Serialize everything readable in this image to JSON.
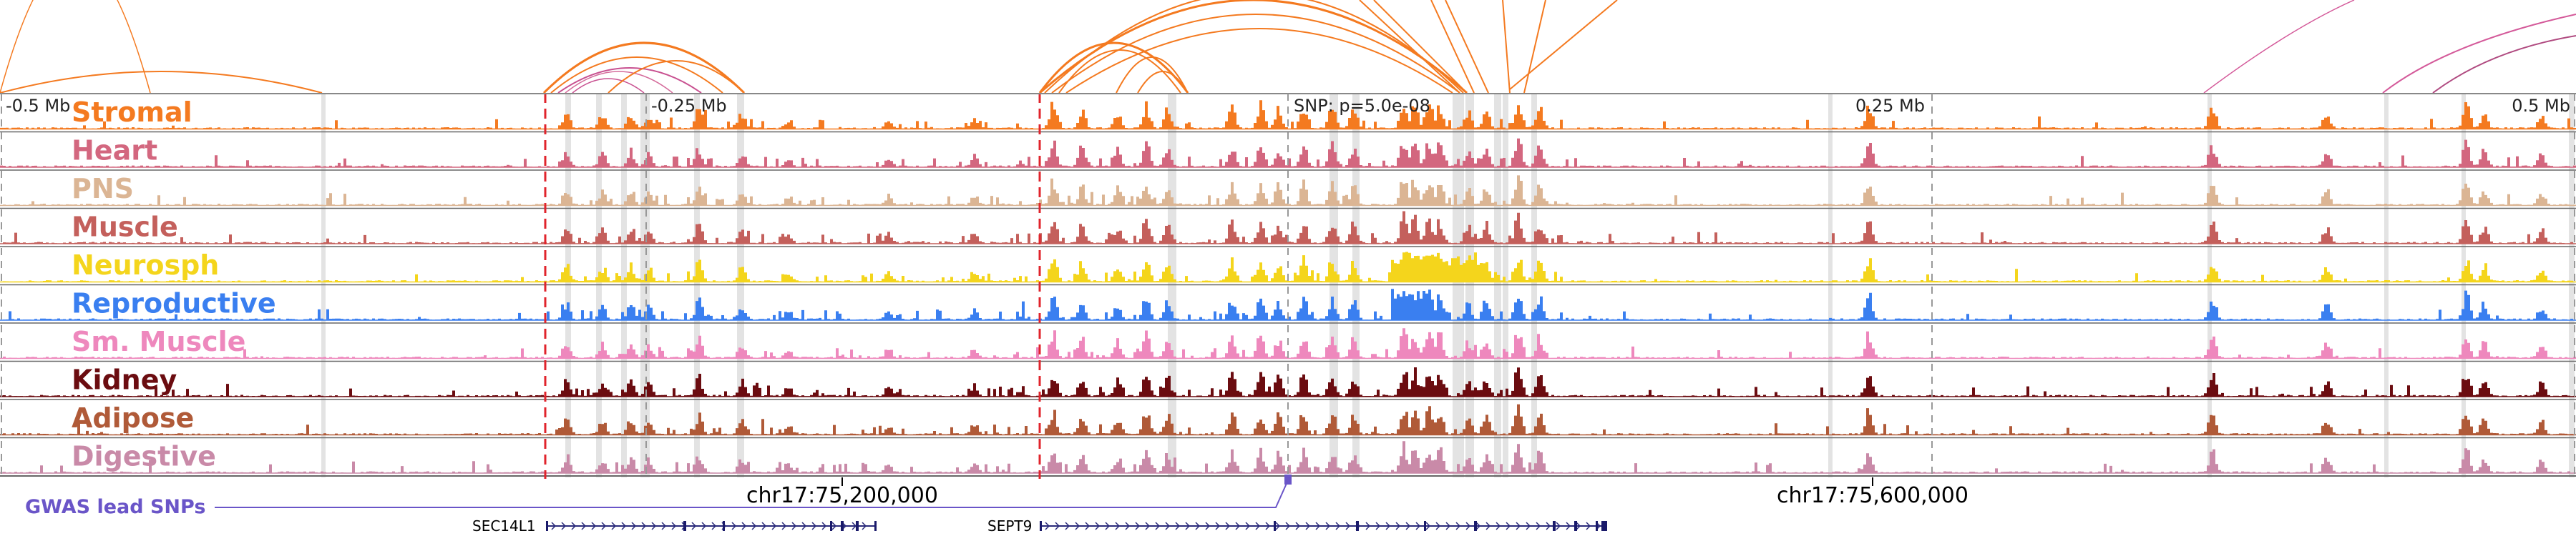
{
  "axis": {
    "ticks": [
      "-0.5 Mb",
      "-0.25 Mb",
      "0.25 Mb",
      "0.5 Mb"
    ],
    "snp_label": "SNP: p=5.0e-08"
  },
  "tracks": [
    {
      "name": "Stromal",
      "color": "#f47a20"
    },
    {
      "name": "Heart",
      "color": "#d3677f"
    },
    {
      "name": "PNS",
      "color": "#dbb594"
    },
    {
      "name": "Muscle",
      "color": "#c4605c"
    },
    {
      "name": "Neurosph",
      "color": "#f4d51c"
    },
    {
      "name": "Reproductive",
      "color": "#3a7ff0"
    },
    {
      "name": "Sm. Muscle",
      "color": "#ee88bd"
    },
    {
      "name": "Kidney",
      "color": "#6b0c10"
    },
    {
      "name": "Adipose",
      "color": "#b05a38"
    },
    {
      "name": "Digestive",
      "color": "#c98aa8"
    }
  ],
  "coordinates": [
    "chr17:75,200,000",
    "chr17:75,600,000"
  ],
  "gwas": {
    "label": "GWAS lead SNPs",
    "color": "#6a55c8"
  },
  "genes": [
    "SEC14L1",
    "SEPT9"
  ],
  "colors": {
    "highlight": "#e3e3e3",
    "region_line": "#e0242c",
    "loop": "#f47a20",
    "loop_right": "#d45a9a",
    "axis_line": "#888888"
  }
}
